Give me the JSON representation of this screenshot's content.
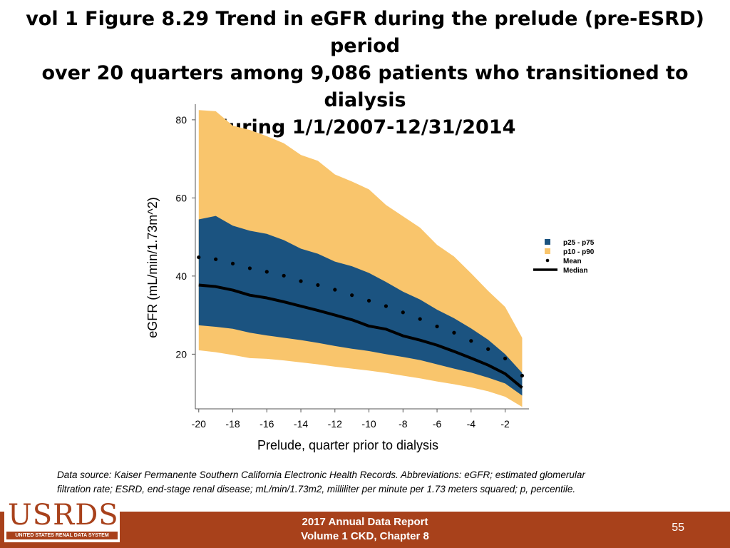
{
  "title": {
    "line1": "vol 1 Figure 8.29 Trend in eGFR during the prelude (pre-ESRD) period",
    "line2": "over 20 quarters among 9,086 patients who transitioned to dialysis",
    "line3": "during 1/1/2007-12/31/2014"
  },
  "chart_data": {
    "type": "area",
    "xlabel": "Prelude, quarter prior to dialysis",
    "ylabel": "eGFR (mL/min/1.73m^2)",
    "x_ticks": [
      -20,
      -18,
      -16,
      -14,
      -12,
      -10,
      -8,
      -6,
      -4,
      -2
    ],
    "y_ticks": [
      20,
      40,
      60,
      80
    ],
    "xlim": [
      -20.2,
      -0.6
    ],
    "ylim": [
      6,
      84
    ],
    "grid": false,
    "legend_position": "right",
    "colors": {
      "p25_p75": "#1b5380",
      "p10_p90": "#f9c56c",
      "mean": "#000000",
      "median": "#000000"
    },
    "x": [
      -20,
      -19,
      -18,
      -17,
      -16,
      -15,
      -14,
      -13,
      -12,
      -11,
      -10,
      -9,
      -8,
      -7,
      -6,
      -5,
      -4,
      -3,
      -2,
      -1
    ],
    "series": [
      {
        "name": "p10 - p90",
        "kind": "band",
        "lower": [
          21,
          20.5,
          19.8,
          19,
          18.8,
          18.4,
          17.9,
          17.4,
          16.8,
          16.3,
          15.8,
          15.2,
          14.5,
          13.8,
          13,
          12.3,
          11.5,
          10.5,
          9.1,
          6.5
        ],
        "upper": [
          82.5,
          82.2,
          78.5,
          77.4,
          75.8,
          74,
          71,
          69.5,
          66,
          64.2,
          62.2,
          58.2,
          55.3,
          52.4,
          48,
          45,
          40.7,
          36.2,
          32.1,
          24.2
        ]
      },
      {
        "name": "p25 - p75",
        "kind": "band",
        "lower": [
          27.4,
          27,
          26.5,
          25.5,
          24.8,
          24.2,
          23.6,
          22.9,
          22.1,
          21.4,
          20.8,
          20,
          19.3,
          18.5,
          17.4,
          16.3,
          15.3,
          14,
          12.5,
          9.4
        ],
        "upper": [
          54.5,
          55.4,
          52.9,
          51.6,
          50.8,
          49.2,
          47,
          45.7,
          43.7,
          42.5,
          40.8,
          38.5,
          36,
          34,
          31.4,
          29.2,
          26.6,
          23.7,
          20,
          15.2
        ]
      },
      {
        "name": "Mean",
        "kind": "dots",
        "values": [
          44.8,
          44.3,
          43.2,
          42,
          41.1,
          40.1,
          38.7,
          37.7,
          36.5,
          35.1,
          33.7,
          32.3,
          30.7,
          29,
          27.1,
          25.5,
          23.4,
          21.3,
          18.9,
          14.5
        ]
      },
      {
        "name": "Median",
        "kind": "line",
        "values": [
          37.7,
          37.3,
          36.4,
          35.1,
          34.4,
          33.4,
          32.3,
          31.2,
          30,
          28.8,
          27.2,
          26.4,
          24.7,
          23.6,
          22.3,
          20.7,
          19,
          17.2,
          15,
          11.4
        ]
      }
    ]
  },
  "note": {
    "line1": "Data source: Kaiser Permanente Southern California Electronic Health Records. Abbreviations: eGFR; estimated glomerular",
    "line2": "filtration rate; ESRD, end-stage renal disease; mL/min/1.73m2, milliliter per minute per 1.73 meters squared; p, percentile."
  },
  "footer": {
    "line1": "2017 Annual Data Report",
    "line2": "Volume 1 CKD, Chapter 8",
    "page_number": "55"
  },
  "logo": {
    "wordmark": "USRDS",
    "tagline": "UNITED STATES RENAL DATA SYSTEM"
  }
}
